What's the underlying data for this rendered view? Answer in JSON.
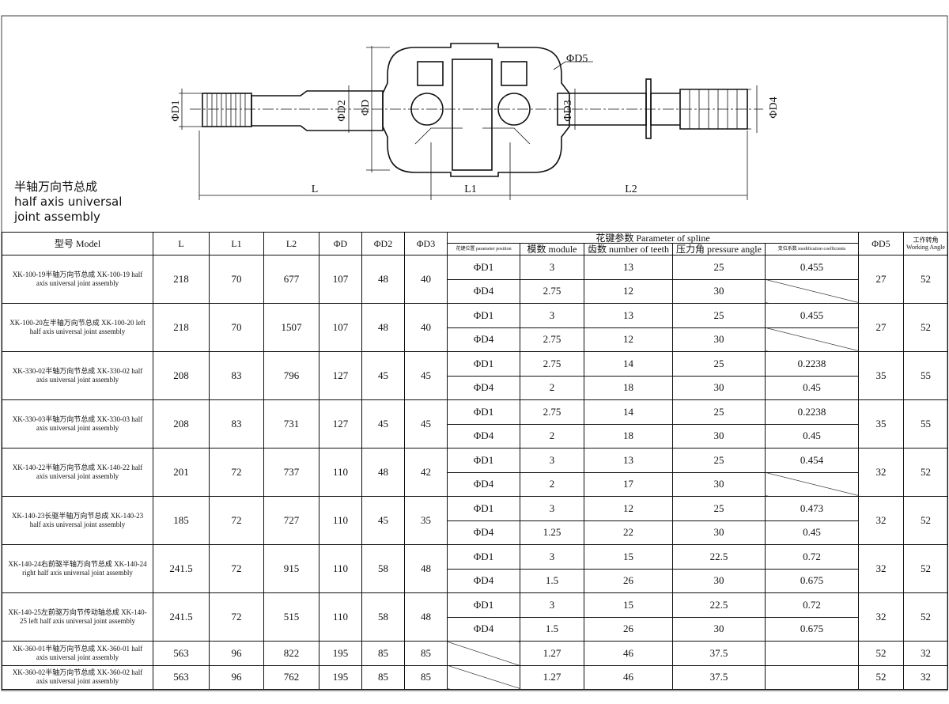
{
  "drawing": {
    "title": [
      "半轴万向节总成",
      "half axis universal",
      "joint assembly"
    ],
    "labels": {
      "D1": "ΦD1",
      "D2": "ΦD2",
      "D": "ΦD",
      "D3": "ΦD3",
      "D4": "ΦD4",
      "D5": "ΦD5",
      "L": "L",
      "L1": "L1",
      "L2": "L2"
    }
  },
  "table": {
    "header": {
      "model": "型号 Model",
      "L": "L",
      "L1": "L1",
      "L2": "L2",
      "D": "ΦD",
      "D2": "ΦD2",
      "D3": "ΦD3",
      "spline_group": "花键参数 Parameter of spline",
      "position": "花键位置 parameter position",
      "module": "模数 module",
      "teeth": "齿数 number of teeth",
      "pressure_angle": "压力角 pressure angle",
      "modification": "变位系数 modification coefficients",
      "D5": "ΦD5",
      "working_angle": [
        "工作转角",
        "Working Angle"
      ]
    },
    "rows": [
      {
        "model": "XK-100-19半轴万向节总成 XK-100-19 half axis universal joint assembly",
        "L": 218,
        "L1": 70,
        "L2": 677,
        "D": 107,
        "D2": 48,
        "D3": 40,
        "splines": [
          {
            "position": "ΦD1",
            "module": 3,
            "teeth": 13,
            "pressure_angle": 25,
            "modification": 0.455
          },
          {
            "position": "ΦD4",
            "module": 2.75,
            "teeth": 12,
            "pressure_angle": 30,
            "modification": null
          }
        ],
        "D5": 27,
        "working_angle": 52
      },
      {
        "model": "XK-100-20左半轴万向节总成 XK-100-20 left half axis universal joint assembly",
        "L": 218,
        "L1": 70,
        "L2": 1507,
        "D": 107,
        "D2": 48,
        "D3": 40,
        "splines": [
          {
            "position": "ΦD1",
            "module": 3,
            "teeth": 13,
            "pressure_angle": 25,
            "modification": 0.455
          },
          {
            "position": "ΦD4",
            "module": 2.75,
            "teeth": 12,
            "pressure_angle": 30,
            "modification": null
          }
        ],
        "D5": 27,
        "working_angle": 52
      },
      {
        "model": "XK-330-02半轴万向节总成 XK-330-02 half axis universal joint assembly",
        "L": 208,
        "L1": 83,
        "L2": 796,
        "D": 127,
        "D2": 45,
        "D3": 45,
        "splines": [
          {
            "position": "ΦD1",
            "module": 2.75,
            "teeth": 14,
            "pressure_angle": 25,
            "modification": 0.2238
          },
          {
            "position": "ΦD4",
            "module": 2,
            "teeth": 18,
            "pressure_angle": 30,
            "modification": 0.45
          }
        ],
        "D5": 35,
        "working_angle": 55
      },
      {
        "model": "XK-330-03半轴万向节总成 XK-330-03 half axis universal joint assembly",
        "L": 208,
        "L1": 83,
        "L2": 731,
        "D": 127,
        "D2": 45,
        "D3": 45,
        "splines": [
          {
            "position": "ΦD1",
            "module": 2.75,
            "teeth": 14,
            "pressure_angle": 25,
            "modification": 0.2238
          },
          {
            "position": "ΦD4",
            "module": 2,
            "teeth": 18,
            "pressure_angle": 30,
            "modification": 0.45
          }
        ],
        "D5": 35,
        "working_angle": 55
      },
      {
        "model": "XK-140-22半轴万向节总成 XK-140-22 half axis universal joint assembly",
        "L": 201,
        "L1": 72,
        "L2": 737,
        "D": 110,
        "D2": 48,
        "D3": 42,
        "splines": [
          {
            "position": "ΦD1",
            "module": 3,
            "teeth": 13,
            "pressure_angle": 25,
            "modification": 0.454
          },
          {
            "position": "ΦD4",
            "module": 2,
            "teeth": 17,
            "pressure_angle": 30,
            "modification": null
          }
        ],
        "D5": 32,
        "working_angle": 52
      },
      {
        "model": "XK-140-23长驱半轴万向节总成 XK-140-23 half axis universal joint assembly",
        "L": 185,
        "L1": 72,
        "L2": 727,
        "D": 110,
        "D2": 45,
        "D3": 35,
        "splines": [
          {
            "position": "ΦD1",
            "module": 3,
            "teeth": 12,
            "pressure_angle": 25,
            "modification": 0.473
          },
          {
            "position": "ΦD4",
            "module": 1.25,
            "teeth": 22,
            "pressure_angle": 30,
            "modification": 0.45
          }
        ],
        "D5": 32,
        "working_angle": 52
      },
      {
        "model": "XK-140-24右前驱半轴万向节总成 XK-140-24 right half axis universal joint assembly",
        "L": 241.5,
        "L1": 72,
        "L2": 915,
        "D": 110,
        "D2": 58,
        "D3": 48,
        "splines": [
          {
            "position": "ΦD1",
            "module": 3,
            "teeth": 15,
            "pressure_angle": 22.5,
            "modification": 0.72
          },
          {
            "position": "ΦD4",
            "module": 1.5,
            "teeth": 26,
            "pressure_angle": 30,
            "modification": 0.675
          }
        ],
        "D5": 32,
        "working_angle": 52
      },
      {
        "model": "XK-140-25左前驱万向节传动轴总成 XK-140-25 left half axis universal joint assembly",
        "L": 241.5,
        "L1": 72,
        "L2": 515,
        "D": 110,
        "D2": 58,
        "D3": 48,
        "splines": [
          {
            "position": "ΦD1",
            "module": 3,
            "teeth": 15,
            "pressure_angle": 22.5,
            "modification": 0.72
          },
          {
            "position": "ΦD4",
            "module": 1.5,
            "teeth": 26,
            "pressure_angle": 30,
            "modification": 0.675
          }
        ],
        "D5": 32,
        "working_angle": 52
      },
      {
        "model": "XK-360-01半轴万向节总成 XK-360-01 half axis universal joint assembly",
        "L": 563,
        "L1": 96,
        "L2": 822,
        "D": 195,
        "D2": 85,
        "D3": 85,
        "splines": [
          {
            "position": null,
            "module": 1.27,
            "teeth": 46,
            "pressure_angle": 37.5
          }
        ],
        "D5": 52,
        "working_angle": 32
      },
      {
        "model": "XK-360-02半轴万向节总成 XK-360-02 half axis universal joint assembly",
        "L": 563,
        "L1": 96,
        "L2": 762,
        "D": 195,
        "D2": 85,
        "D3": 85,
        "splines": [
          {
            "position": null,
            "module": 1.27,
            "teeth": 46,
            "pressure_angle": 37.5
          }
        ],
        "D5": 52,
        "working_angle": 32
      }
    ]
  }
}
